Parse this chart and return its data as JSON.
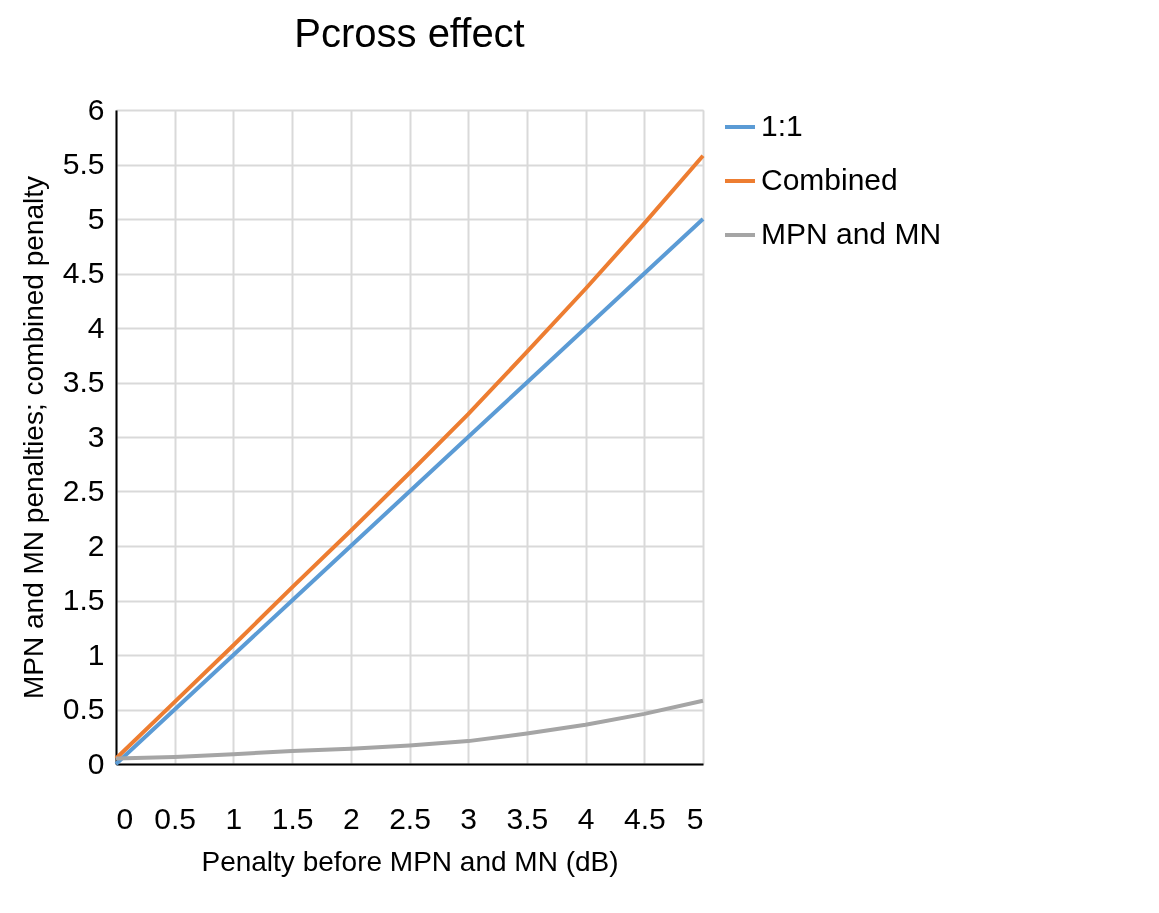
{
  "chart_data": {
    "type": "line",
    "title": "Pcross effect",
    "xlabel": "Penalty before MPN and MN (dB)",
    "ylabel": "MPN and MN penalties; combined penalty",
    "x": [
      0,
      0.5,
      1,
      1.5,
      2,
      2.5,
      3,
      3.5,
      4,
      4.5,
      5
    ],
    "series": [
      {
        "name": "1:1",
        "color": "#5b9bd5",
        "values": [
          0,
          0.5,
          1,
          1.5,
          2,
          2.5,
          3,
          3.5,
          4,
          4.5,
          5
        ]
      },
      {
        "name": "Combined",
        "color": "#ed7d31",
        "values": [
          0.05,
          0.57,
          1.09,
          1.62,
          2.14,
          2.67,
          3.21,
          3.78,
          4.36,
          4.96,
          5.58
        ]
      },
      {
        "name": "MPN and MN",
        "color": "#a5a5a5",
        "values": [
          0.05,
          0.065,
          0.09,
          0.12,
          0.14,
          0.17,
          0.21,
          0.28,
          0.36,
          0.46,
          0.58
        ]
      }
    ],
    "xlim": [
      0,
      5
    ],
    "xticks": [
      0,
      0.5,
      1,
      1.5,
      2,
      2.5,
      3,
      3.5,
      4,
      4.5,
      5
    ],
    "ylim": [
      0,
      6
    ],
    "yticks": [
      0,
      0.5,
      1,
      1.5,
      2,
      2.5,
      3,
      3.5,
      4,
      4.5,
      5,
      5.5,
      6
    ],
    "grid": true,
    "legend": "right",
    "marker": "none",
    "line_style": "solid"
  }
}
